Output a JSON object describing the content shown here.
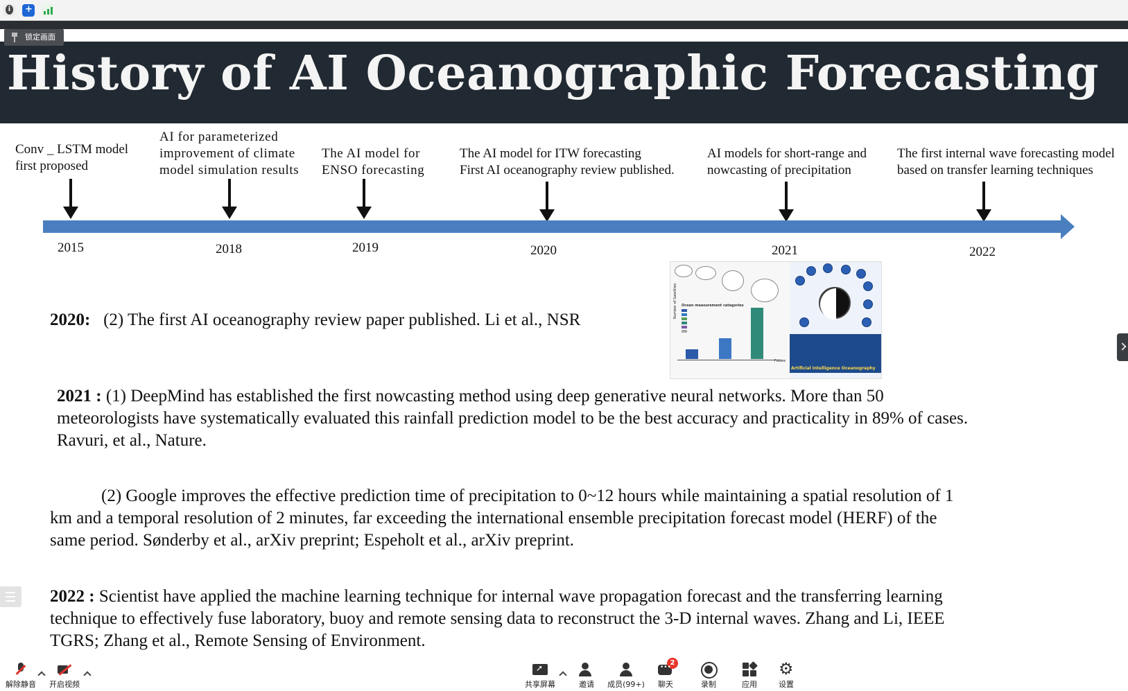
{
  "overlay": {
    "lock_button": "锁定画面"
  },
  "slide": {
    "title": "History of AI Oceanographic Forecasting",
    "timeline": [
      {
        "year": "2015",
        "label_lines": [
          "Conv _ LSTM  model",
          "first proposed"
        ]
      },
      {
        "year": "2018",
        "label_lines": [
          "AI for parameterized",
          "improvement of climate",
          "model simulation results"
        ]
      },
      {
        "year": "2019",
        "label_lines": [
          "The AI model for",
          "ENSO forecasting"
        ]
      },
      {
        "year": "2020",
        "label_lines": [
          "The AI model for ITW forecasting",
          "First AI oceanography review published."
        ]
      },
      {
        "year": "2021",
        "label_lines": [
          "AI models for short-range and",
          "nowcasting of precipitation"
        ]
      },
      {
        "year": "2022",
        "label_lines": [
          "The first internal wave forecasting model",
          "based on transfer learning techniques"
        ]
      }
    ],
    "figure": {
      "caption": "Artificial Intelligence Oceanography",
      "legend_title": "Ocean measurement categories",
      "x_label": "Future",
      "y_label": "Number of Satellites"
    },
    "paragraphs": {
      "p2020_label": "2020:",
      "p2020_text": "(2) The first AI oceanography review paper published. Li et al., NSR",
      "p2021_label": "2021 :",
      "p2021_l1": "(1) DeepMind has established the first nowcasting method using deep generative neural networks. More than 50",
      "p2021_l2": "meteorologists have systematically evaluated this rainfall prediction model to be the best accuracy and practicality in 89% of cases.",
      "p2021_l3": "Ravuri, et al., Nature.",
      "p2021b_l1": "(2) Google improves the effective prediction time of precipitation to 0~12 hours while maintaining a spatial resolution of 1",
      "p2021b_l2": "km and a temporal resolution of 2 minutes, far exceeding the international ensemble precipitation forecast model (HERF) of the",
      "p2021b_l3": "same period. Sønderby et al., arXiv preprint; Espeholt et al., arXiv preprint.",
      "p2022_label": "2022 :",
      "p2022_l1": "Scientist have applied the machine learning technique for internal wave propagation forecast and the transferring learning",
      "p2022_l2": "technique to effectively fuse laboratory, buoy and remote sensing data to reconstruct the 3-D internal waves. Zhang and Li, IEEE",
      "p2022_l3": "TGRS; Zhang et al., Remote Sensing of Environment."
    }
  },
  "toolbar": {
    "unmute": "解除静音",
    "start_video": "开启视频",
    "share_screen": "共享屏幕",
    "invite": "邀请",
    "members": "成员(99+)",
    "chat": "聊天",
    "chat_badge": "2",
    "record": "录制",
    "apps": "应用",
    "settings": "设置"
  }
}
